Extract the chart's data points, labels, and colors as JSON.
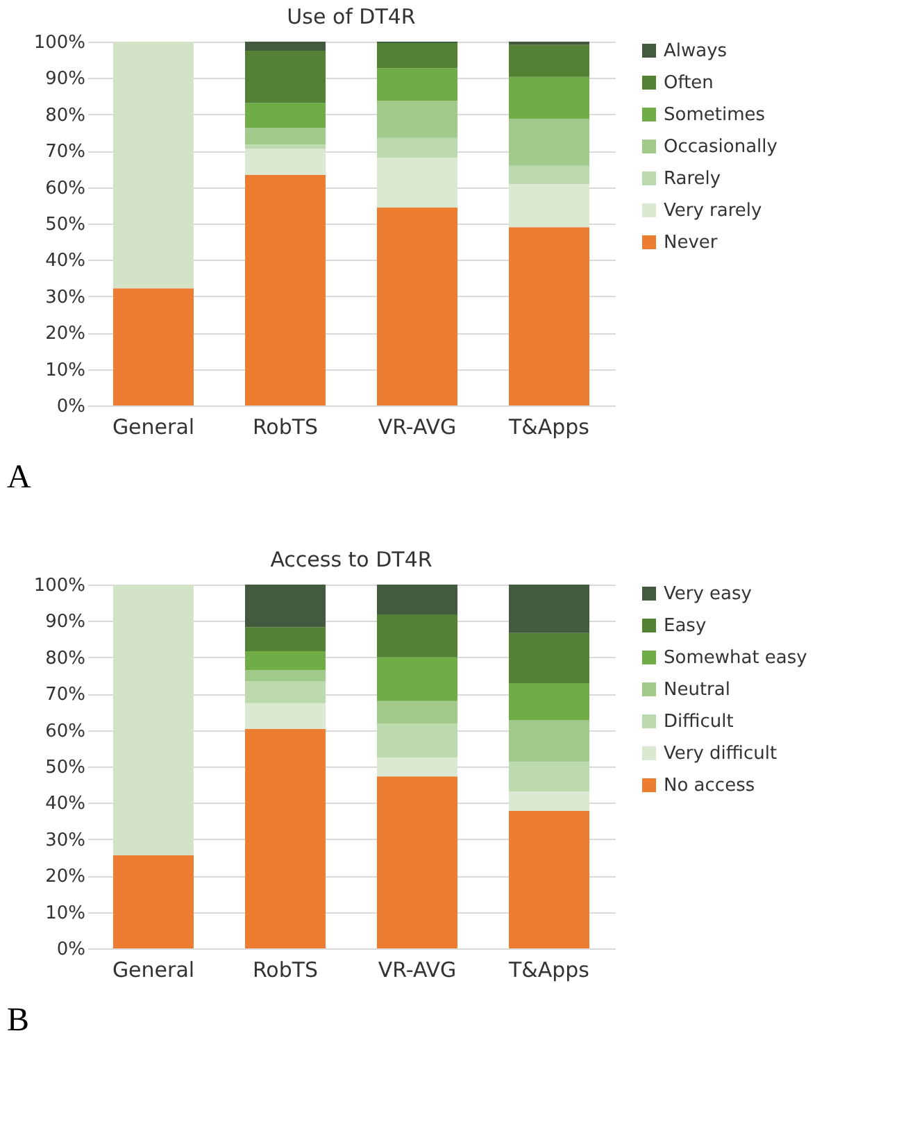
{
  "chart_data": [
    {
      "type": "bar",
      "title": "Use of DT4R",
      "stacked": true,
      "categories": [
        "General",
        "RobTS",
        "VR-AVG",
        "T&Apps"
      ],
      "ylim": [
        0,
        100
      ],
      "yticks": [
        {
          "value": 0,
          "label": "0%"
        },
        {
          "value": 10,
          "label": "10%"
        },
        {
          "value": 20,
          "label": "20%"
        },
        {
          "value": 30,
          "label": "30%"
        },
        {
          "value": 40,
          "label": "40%"
        },
        {
          "value": 50,
          "label": "50%"
        },
        {
          "value": 60,
          "label": "60%"
        },
        {
          "value": 70,
          "label": "70%"
        },
        {
          "value": 80,
          "label": "80%"
        },
        {
          "value": 90,
          "label": "90%"
        },
        {
          "value": 100,
          "label": "100%"
        }
      ],
      "grid": "y",
      "legend": "right",
      "annotations": [
        "A"
      ],
      "series": [
        {
          "name": "Never",
          "color": "#ed7d31",
          "values": [
            32.2,
            63.4,
            54.4,
            49.0
          ]
        },
        {
          "color": "#d3e3c8",
          "values": [
            67.8,
            null,
            null,
            null
          ]
        },
        {
          "name": "Very rarely",
          "color": "#dbe9d3",
          "values": [
            null,
            7.2,
            13.7,
            11.9
          ]
        },
        {
          "name": "Rarely",
          "color": "#bcdaad",
          "values": [
            null,
            1.1,
            5.4,
            5.0
          ]
        },
        {
          "name": "Occasionally",
          "color": "#a0c98a",
          "values": [
            null,
            4.6,
            10.3,
            12.9
          ]
        },
        {
          "name": "Sometimes",
          "color": "#70ad47",
          "values": [
            null,
            6.8,
            8.9,
            11.5
          ]
        },
        {
          "name": "Often",
          "color": "#548235",
          "values": [
            null,
            14.4,
            6.9,
            8.8
          ]
        },
        {
          "name": "Always",
          "color": "#435a3e",
          "values": [
            null,
            2.5,
            0.4,
            0.9
          ]
        }
      ]
    },
    {
      "type": "bar",
      "title": "Access to DT4R",
      "stacked": true,
      "categories": [
        "General",
        "RobTS",
        "VR-AVG",
        "T&Apps"
      ],
      "ylim": [
        0,
        100
      ],
      "yticks": [
        {
          "value": 0,
          "label": "0%"
        },
        {
          "value": 10,
          "label": "10%"
        },
        {
          "value": 20,
          "label": "20%"
        },
        {
          "value": 30,
          "label": "30%"
        },
        {
          "value": 40,
          "label": "40%"
        },
        {
          "value": 50,
          "label": "50%"
        },
        {
          "value": 60,
          "label": "60%"
        },
        {
          "value": 70,
          "label": "70%"
        },
        {
          "value": 80,
          "label": "80%"
        },
        {
          "value": 90,
          "label": "90%"
        },
        {
          "value": 100,
          "label": "100%"
        }
      ],
      "grid": "y",
      "legend": "right",
      "annotations": [
        "B"
      ],
      "series": [
        {
          "name": "No access",
          "color": "#ed7d31",
          "values": [
            25.6,
            60.3,
            47.3,
            37.8
          ]
        },
        {
          "color": "#d3e3c8",
          "values": [
            74.4,
            null,
            null,
            null
          ]
        },
        {
          "name": "Very difficult",
          "color": "#dbe9d3",
          "values": [
            null,
            7.1,
            5.1,
            5.3
          ]
        },
        {
          "name": "Difficult",
          "color": "#bcdaad",
          "values": [
            null,
            6.0,
            9.4,
            8.2
          ]
        },
        {
          "name": "Neutral",
          "color": "#a0c98a",
          "values": [
            null,
            3.1,
            6.2,
            11.5
          ]
        },
        {
          "name": "Somewhat easy",
          "color": "#70ad47",
          "values": [
            null,
            5.2,
            12.0,
            10.1
          ]
        },
        {
          "name": "Easy",
          "color": "#548235",
          "values": [
            null,
            6.6,
            11.8,
            13.8
          ]
        },
        {
          "name": "Very easy",
          "color": "#435a3e",
          "values": [
            null,
            11.7,
            8.2,
            13.3
          ]
        }
      ]
    }
  ]
}
